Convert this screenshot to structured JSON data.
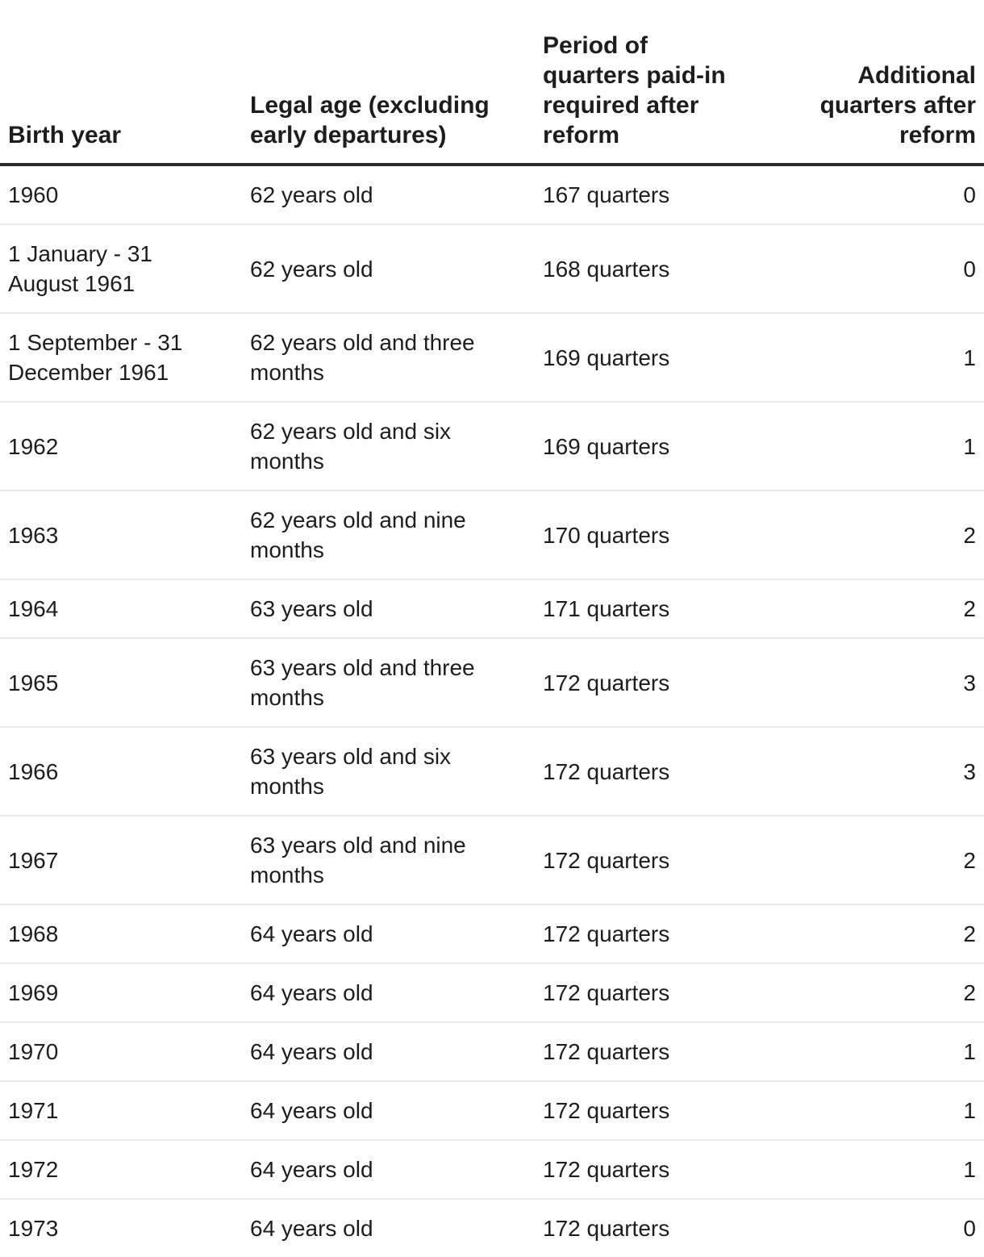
{
  "chart_data": {
    "type": "table",
    "title": "",
    "columns": [
      "Birth year",
      "Legal age (excluding early departures)",
      "Period of quarters paid-in required after reform",
      "Additional quarters after reform"
    ],
    "rows": [
      [
        "1960",
        "62 years old",
        "167 quarters",
        "0"
      ],
      [
        "1 January - 31 August 1961",
        "62 years old",
        "168 quarters",
        "0"
      ],
      [
        "1 September - 31 December 1961",
        "62 years old and three months",
        "169 quarters",
        "1"
      ],
      [
        "1962",
        "62 years old and six months",
        "169 quarters",
        "1"
      ],
      [
        "1963",
        "62 years old and nine months",
        "170 quarters",
        "2"
      ],
      [
        "1964",
        "63 years old",
        "171 quarters",
        "2"
      ],
      [
        "1965",
        "63 years old and three months",
        "172 quarters",
        "3"
      ],
      [
        "1966",
        "63 years old and six months",
        "172 quarters",
        "3"
      ],
      [
        "1967",
        "63 years old and nine months",
        "172 quarters",
        "2"
      ],
      [
        "1968",
        "64 years old",
        "172 quarters",
        "2"
      ],
      [
        "1969",
        "64 years old",
        "172 quarters",
        "2"
      ],
      [
        "1970",
        "64 years old",
        "172 quarters",
        "1"
      ],
      [
        "1971",
        "64 years old",
        "172 quarters",
        "1"
      ],
      [
        "1972",
        "64 years old",
        "172 quarters",
        "1"
      ],
      [
        "1973",
        "64 years old",
        "172 quarters",
        "0"
      ]
    ],
    "layout": {
      "header_rule_color": "#2c2c2c",
      "row_divider_color": "#e9e9e9",
      "text_color": "#1d1d1d",
      "last_column_align": "right",
      "grid": "horizontal-only"
    }
  }
}
